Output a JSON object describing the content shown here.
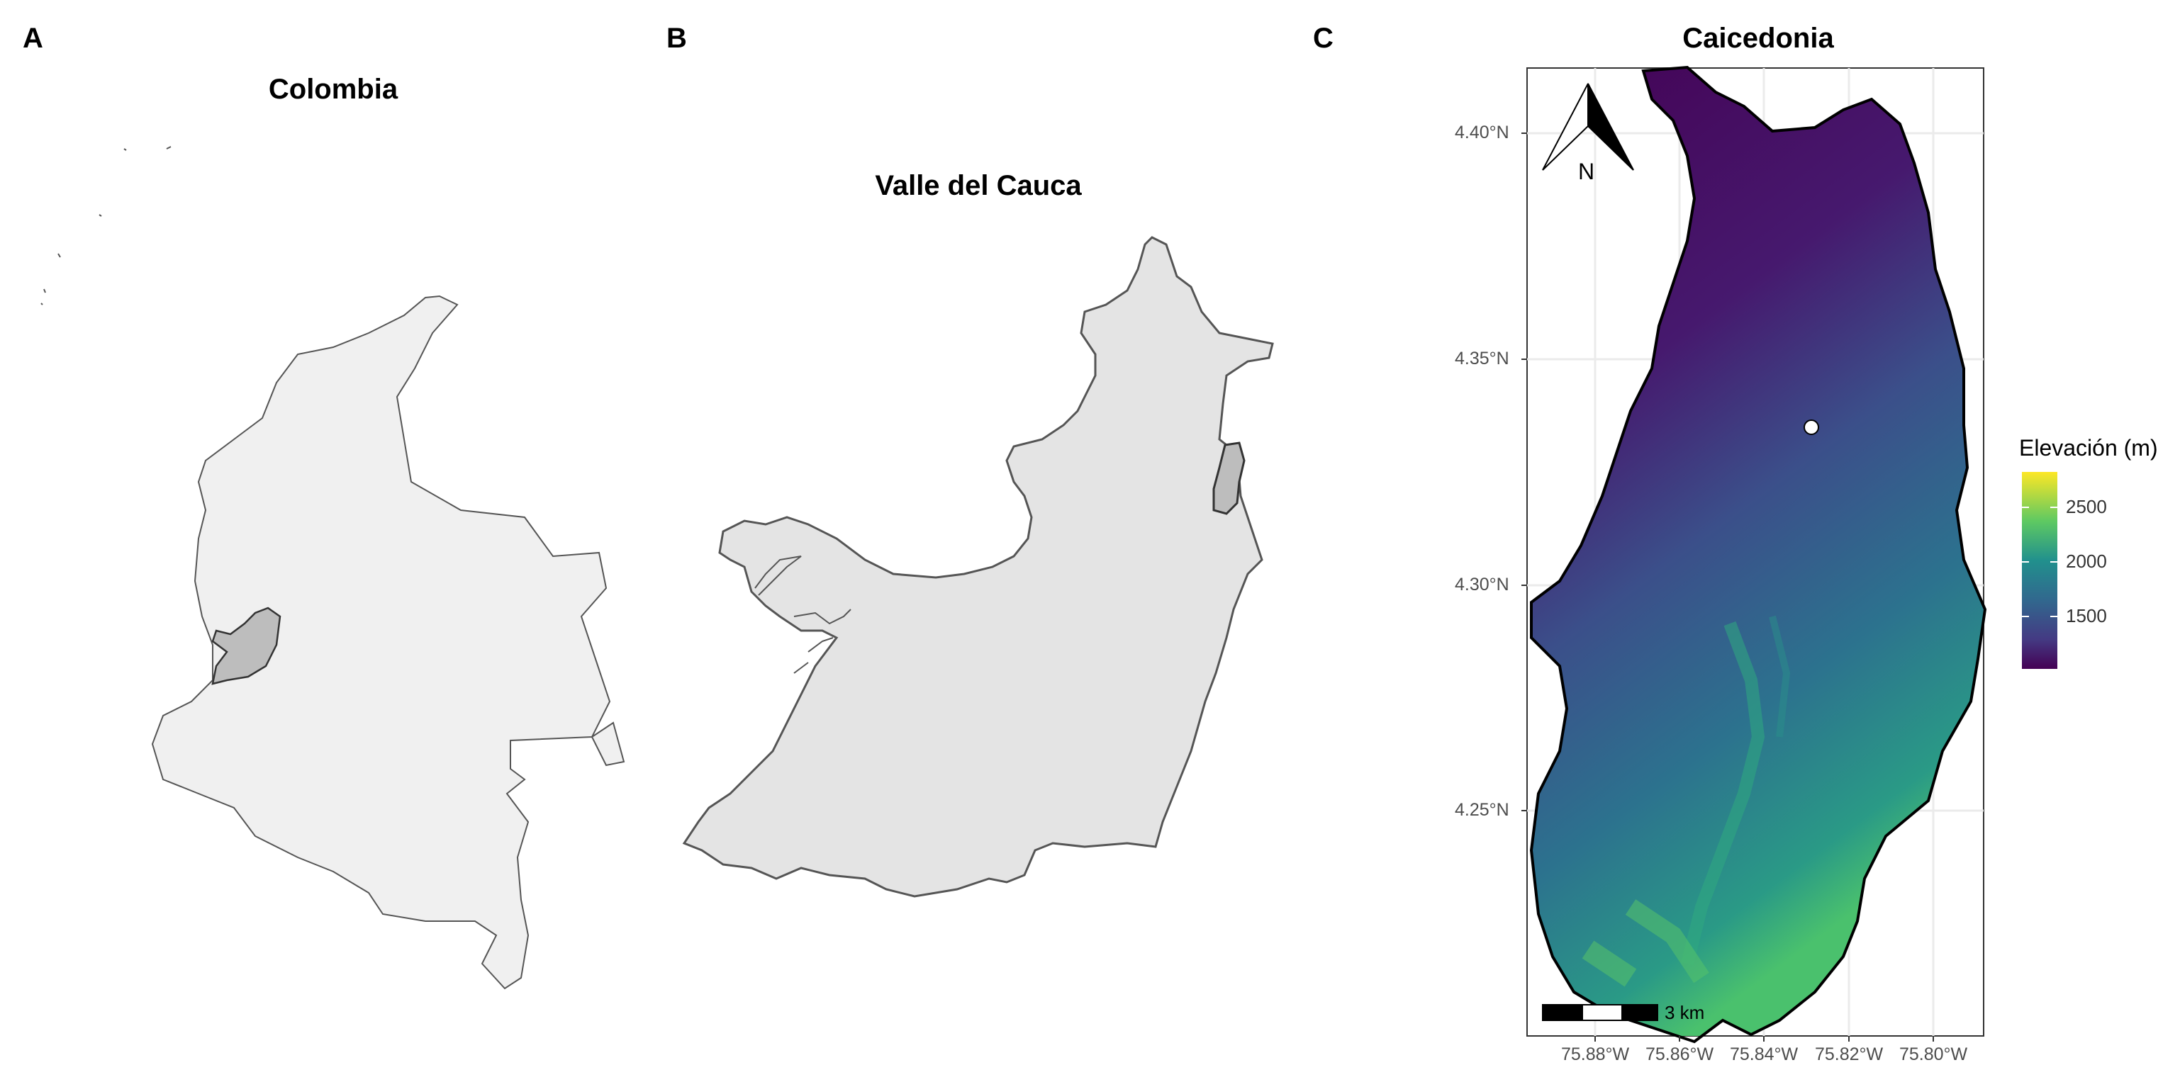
{
  "panels": {
    "a": {
      "letter": "A",
      "title": "Colombia"
    },
    "b": {
      "letter": "B",
      "title": "Valle del Cauca"
    },
    "c": {
      "letter": "C",
      "title": "Caicedonia"
    }
  },
  "map_c": {
    "y_ticks": [
      "4.40°N",
      "4.35°N",
      "4.30°N",
      "4.25°N"
    ],
    "x_ticks": [
      "75.88°W",
      "75.86°W",
      "75.84°W",
      "75.82°W",
      "75.80°W"
    ],
    "north_arrow": "N",
    "scale_bar": "3 km",
    "point_marker": "white-circle"
  },
  "legend": {
    "title": "Elevación (m)",
    "ticks": [
      "2500",
      "2000",
      "1500"
    ],
    "colors": [
      "#fde725",
      "#35b779",
      "#21908d",
      "#31688e",
      "#443a83",
      "#440154"
    ]
  },
  "colors": {
    "country_fill": "#f0f0f0",
    "department_fill": "#e4e4e4",
    "highlight_fill": "#bdbdbd",
    "outline": "#555555",
    "gridline": "#ebebeb"
  }
}
